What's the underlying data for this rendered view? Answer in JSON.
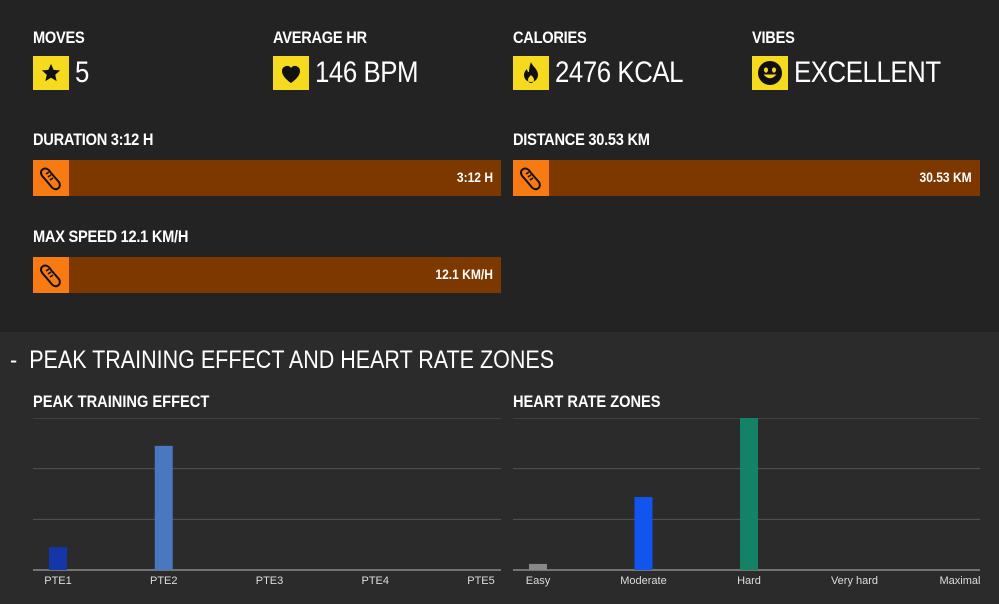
{
  "stats": [
    {
      "label": "MOVES",
      "value": "5",
      "icon": "star-icon"
    },
    {
      "label": "AVERAGE HR",
      "value": "146 BPM",
      "icon": "heart-icon"
    },
    {
      "label": "CALORIES",
      "value": "2476 KCAL",
      "icon": "flame-icon"
    },
    {
      "label": "VIBES",
      "value": "EXCELLENT",
      "icon": "smiley-icon"
    }
  ],
  "bars": {
    "duration": {
      "label": "DURATION 3:12 H",
      "value": "3:12 H",
      "icon": "shoe-icon"
    },
    "distance": {
      "label": "DISTANCE 30.53 KM",
      "value": "30.53 KM",
      "icon": "shoe-icon"
    },
    "max_speed": {
      "label": "MAX SPEED 12.1 KM/H",
      "value": "12.1 KM/H",
      "icon": "shoe-icon"
    }
  },
  "section": {
    "collapse_symbol": "-",
    "title": "PEAK TRAINING EFFECT AND HEART RATE ZONES"
  },
  "colors": {
    "accent_yellow": "#f6da1e",
    "accent_orange": "#f77a12",
    "bar_fill": "#7d3800"
  },
  "chart_data": [
    {
      "type": "bar",
      "title": "PEAK TRAINING EFFECT",
      "categories": [
        "PTE1",
        "PTE2",
        "PTE3",
        "PTE4",
        "PTE5"
      ],
      "values": [
        0.18,
        0.98,
        0,
        0,
        0
      ],
      "colors": [
        "#1336a8",
        "#4a78c0",
        "#4a78c0",
        "#4a78c0",
        "#4a78c0"
      ],
      "ylim": [
        0,
        1.2
      ],
      "grid": true
    },
    {
      "type": "bar",
      "title": "HEART RATE ZONES",
      "categories": [
        "Easy",
        "Moderate",
        "Hard",
        "Very hard",
        "Maximal"
      ],
      "values": [
        0.04,
        0.48,
        1.0,
        0,
        0
      ],
      "colors": [
        "#888888",
        "#1155ee",
        "#138266",
        "#888888",
        "#888888"
      ],
      "ylim": [
        0,
        1.0
      ],
      "grid": true
    }
  ]
}
